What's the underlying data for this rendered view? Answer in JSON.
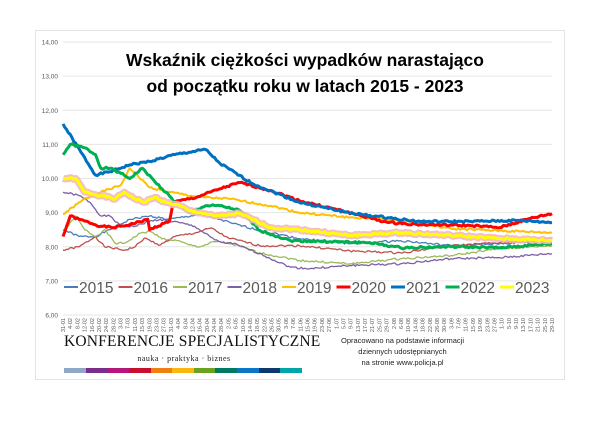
{
  "chart_data": {
    "type": "line",
    "title_line1": "Wskaźnik ciężkości wypadków narastająco",
    "title_line2": "od początku roku w latach 2015 - 2023",
    "ylim": [
      6,
      14
    ],
    "y_ticks": [
      "6,00",
      "7,00",
      "8,00",
      "9,00",
      "10,00",
      "11,00",
      "12,00",
      "13,00",
      "14,00"
    ],
    "x_unit": "days since 31-01",
    "x_range": [
      0,
      271
    ],
    "x_tick_labels": [
      "31-01",
      "4-02",
      "8-02",
      "12-02",
      "16-02",
      "20-02",
      "24-02",
      "28-02",
      "3-03",
      "7-03",
      "11-03",
      "15-03",
      "19-03",
      "23-03",
      "27-03",
      "31-03",
      "4-04",
      "8-04",
      "12-04",
      "16-04",
      "20-04",
      "24-04",
      "28-04",
      "2-05",
      "6-05",
      "10-05",
      "14-05",
      "18-05",
      "22-05",
      "26-05",
      "30-05",
      "3-06",
      "7-06",
      "11-06",
      "15-06",
      "19-06",
      "23-06",
      "27-06",
      "1-07",
      "5-07",
      "9-07",
      "13-07",
      "17-07",
      "21-07",
      "25-07",
      "29-07",
      "2-08",
      "6-08",
      "10-08",
      "14-08",
      "18-08",
      "22-08",
      "26-08",
      "30-08",
      "3-09",
      "7-09",
      "11-09",
      "15-09",
      "19-09",
      "23-09",
      "27-09",
      "1-10",
      "5-10",
      "9-10",
      "13-10",
      "17-10",
      "21-10",
      "25-10",
      "29-10"
    ],
    "grid": true,
    "legend_position": "bottom-inside",
    "series": [
      {
        "name": "2015",
        "color": "#4a7ebb",
        "width": 1.3,
        "points": [
          [
            0,
            8.5
          ],
          [
            9,
            8.3
          ],
          [
            18,
            8.3
          ],
          [
            26,
            8.5
          ],
          [
            37,
            8.8
          ],
          [
            48,
            8.9
          ],
          [
            59,
            8.8
          ],
          [
            76,
            8.95
          ],
          [
            87,
            8.8
          ],
          [
            94,
            8.68
          ],
          [
            109,
            8.48
          ],
          [
            131,
            8.24
          ],
          [
            159,
            8.09
          ],
          [
            187,
            8.18
          ],
          [
            215,
            8.03
          ],
          [
            242,
            8.09
          ],
          [
            271,
            8.18
          ]
        ]
      },
      {
        "name": "2016",
        "color": "#c0504d",
        "width": 1.3,
        "points": [
          [
            0,
            7.9
          ],
          [
            9,
            8.0
          ],
          [
            18,
            8.3
          ],
          [
            23,
            8.0
          ],
          [
            34,
            7.9
          ],
          [
            40,
            8.0
          ],
          [
            45,
            8.25
          ],
          [
            54,
            8.05
          ],
          [
            62,
            8.3
          ],
          [
            73,
            8.4
          ],
          [
            82,
            8.55
          ],
          [
            90,
            8.3
          ],
          [
            93,
            8.24
          ],
          [
            109,
            8.03
          ],
          [
            131,
            8.03
          ],
          [
            159,
            7.88
          ],
          [
            187,
            7.82
          ],
          [
            215,
            8.03
          ],
          [
            242,
            8.12
          ],
          [
            271,
            8.24
          ]
        ]
      },
      {
        "name": "2017",
        "color": "#9bbb59",
        "width": 1.3,
        "points": [
          [
            0,
            8.4
          ],
          [
            7,
            8.9
          ],
          [
            12,
            8.5
          ],
          [
            18,
            8.3
          ],
          [
            23,
            8.5
          ],
          [
            29,
            8.1
          ],
          [
            34,
            8.1
          ],
          [
            43,
            8.4
          ],
          [
            48,
            8.45
          ],
          [
            57,
            8.2
          ],
          [
            62,
            8.2
          ],
          [
            70,
            8.05
          ],
          [
            76,
            8.0
          ],
          [
            84,
            8.15
          ],
          [
            93,
            8.09
          ],
          [
            109,
            7.82
          ],
          [
            131,
            7.6
          ],
          [
            159,
            7.5
          ],
          [
            187,
            7.65
          ],
          [
            215,
            7.74
          ],
          [
            242,
            7.94
          ],
          [
            271,
            8.03
          ]
        ]
      },
      {
        "name": "2018",
        "color": "#7f5fa8",
        "width": 1.3,
        "points": [
          [
            0,
            9.6
          ],
          [
            9,
            9.5
          ],
          [
            15,
            9.3
          ],
          [
            21,
            8.9
          ],
          [
            26,
            8.9
          ],
          [
            32,
            8.6
          ],
          [
            40,
            8.6
          ],
          [
            48,
            8.75
          ],
          [
            54,
            8.8
          ],
          [
            65,
            8.7
          ],
          [
            73,
            8.6
          ],
          [
            84,
            8.2
          ],
          [
            90,
            8.1
          ],
          [
            93,
            8.12
          ],
          [
            109,
            7.8
          ],
          [
            126,
            7.4
          ],
          [
            137,
            7.36
          ],
          [
            159,
            7.45
          ],
          [
            187,
            7.5
          ],
          [
            215,
            7.65
          ],
          [
            242,
            7.68
          ],
          [
            271,
            7.8
          ]
        ]
      },
      {
        "name": "2019",
        "color": "#ffc000",
        "width": 2,
        "points": [
          [
            0,
            8.95
          ],
          [
            12,
            9.4
          ],
          [
            21,
            9.6
          ],
          [
            32,
            9.8
          ],
          [
            37,
            10.3
          ],
          [
            48,
            9.74
          ],
          [
            59,
            9.6
          ],
          [
            76,
            9.45
          ],
          [
            93,
            9.4
          ],
          [
            98,
            9.35
          ],
          [
            115,
            9.2
          ],
          [
            131,
            9.0
          ],
          [
            159,
            8.86
          ],
          [
            187,
            8.77
          ],
          [
            215,
            8.53
          ],
          [
            242,
            8.47
          ],
          [
            271,
            8.41
          ]
        ]
      },
      {
        "name": "2020",
        "color": "#ff0000",
        "width": 3,
        "points": [
          [
            0,
            8.3
          ],
          [
            4,
            8.9
          ],
          [
            9,
            8.8
          ],
          [
            21,
            8.6
          ],
          [
            28,
            8.56
          ],
          [
            37,
            8.65
          ],
          [
            47,
            8.8
          ],
          [
            48,
            8.5
          ],
          [
            59,
            8.75
          ],
          [
            61,
            9.3
          ],
          [
            74,
            9.45
          ],
          [
            87,
            9.7
          ],
          [
            98,
            9.88
          ],
          [
            115,
            9.65
          ],
          [
            131,
            9.35
          ],
          [
            161,
            8.97
          ],
          [
            180,
            8.71
          ],
          [
            198,
            8.65
          ],
          [
            226,
            8.62
          ],
          [
            242,
            8.56
          ],
          [
            259,
            8.83
          ],
          [
            271,
            8.97
          ]
        ]
      },
      {
        "name": "2021",
        "color": "#0070c0",
        "width": 3,
        "points": [
          [
            0,
            11.6
          ],
          [
            18,
            10.1
          ],
          [
            26,
            10.2
          ],
          [
            37,
            10.4
          ],
          [
            48,
            10.5
          ],
          [
            62,
            10.7
          ],
          [
            79,
            10.85
          ],
          [
            87,
            10.44
          ],
          [
            105,
            9.85
          ],
          [
            131,
            9.3
          ],
          [
            161,
            8.97
          ],
          [
            180,
            8.85
          ],
          [
            198,
            8.74
          ],
          [
            226,
            8.74
          ],
          [
            253,
            8.77
          ],
          [
            271,
            8.71
          ]
        ]
      },
      {
        "name": "2022",
        "color": "#00b050",
        "width": 3,
        "points": [
          [
            0,
            10.7
          ],
          [
            4,
            11.0
          ],
          [
            12,
            10.9
          ],
          [
            18,
            10.7
          ],
          [
            21,
            10.3
          ],
          [
            26,
            10.3
          ],
          [
            32,
            10.15
          ],
          [
            37,
            10.0
          ],
          [
            44,
            10.3
          ],
          [
            51,
            9.9
          ],
          [
            57,
            9.6
          ],
          [
            62,
            9.3
          ],
          [
            70,
            9.0
          ],
          [
            79,
            9.2
          ],
          [
            87,
            9.2
          ],
          [
            98,
            9.06
          ],
          [
            109,
            8.48
          ],
          [
            126,
            8.18
          ],
          [
            148,
            8.15
          ],
          [
            170,
            8.12
          ],
          [
            187,
            7.97
          ],
          [
            215,
            8.0
          ],
          [
            242,
            7.97
          ],
          [
            271,
            8.09
          ]
        ]
      },
      {
        "name": "2023",
        "color": "#ffff00",
        "width": 3,
        "glow": "#f4b6c2",
        "points": [
          [
            0,
            10.0
          ],
          [
            7,
            10.0
          ],
          [
            12,
            9.6
          ],
          [
            21,
            9.5
          ],
          [
            29,
            9.4
          ],
          [
            34,
            9.6
          ],
          [
            40,
            9.4
          ],
          [
            45,
            9.3
          ],
          [
            51,
            9.45
          ],
          [
            57,
            9.3
          ],
          [
            65,
            9.2
          ],
          [
            70,
            9.05
          ],
          [
            76,
            9.0
          ],
          [
            84,
            8.9
          ],
          [
            87,
            8.91
          ],
          [
            98,
            8.97
          ],
          [
            115,
            8.56
          ],
          [
            131,
            8.5
          ],
          [
            159,
            8.33
          ],
          [
            187,
            8.41
          ],
          [
            215,
            8.33
          ],
          [
            242,
            8.24
          ],
          [
            271,
            8.18
          ]
        ]
      }
    ]
  },
  "logo": {
    "name": "KONFERENCJE SPECJALISTYCZNE",
    "tagline": "nauka · praktyka · biznes",
    "bar_colors": [
      "#8fa8c8",
      "#7b2d8e",
      "#b5167a",
      "#c8102e",
      "#f07f12",
      "#f9b70f",
      "#6aa121",
      "#007a62",
      "#0a77c6",
      "#0d3a6e",
      "#00a5a8"
    ]
  },
  "source_note": {
    "line1": "Opracowano na podstawie informacji",
    "line2": "dziennych udostępnianych",
    "line3": "na stronie www.policja.pl"
  }
}
